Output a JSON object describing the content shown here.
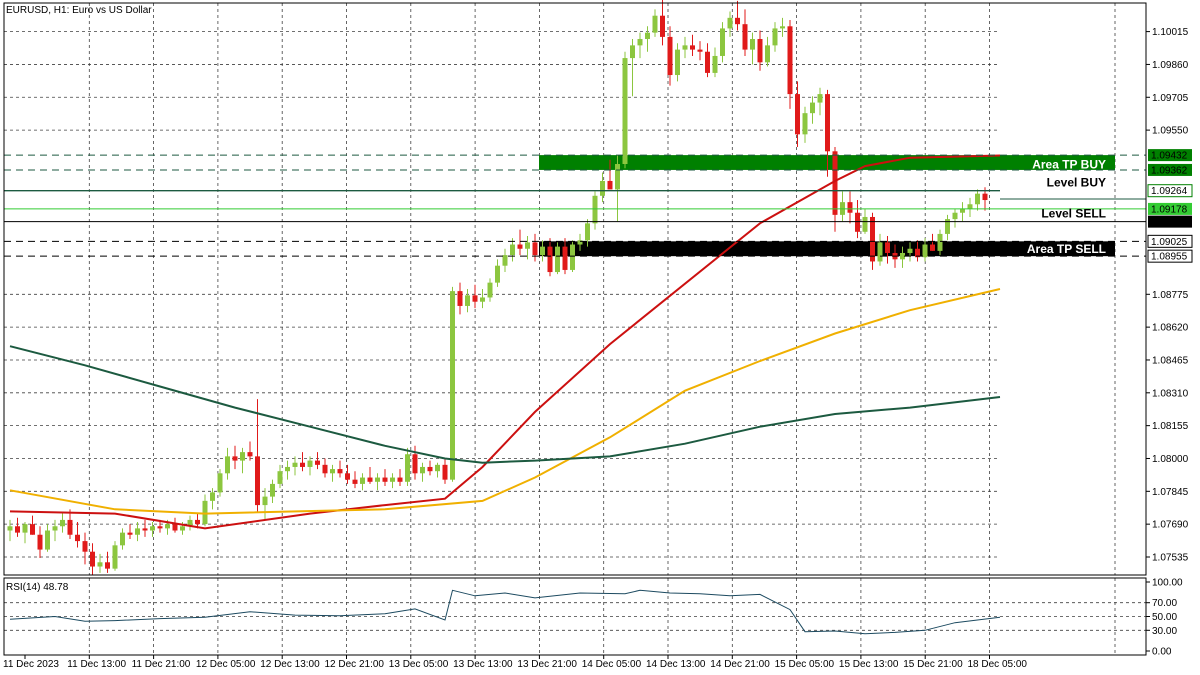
{
  "chart_data": {
    "type": "candlestick",
    "title": "EURUSD, H1:  Euro vs US Dollar",
    "price_axis": {
      "ylim": [
        1.0745,
        1.1015
      ],
      "ticks": [
        "1.10015",
        "1.09860",
        "1.09705",
        "1.09550",
        "1.08775",
        "1.08620",
        "1.08465",
        "1.08310",
        "1.08155",
        "1.08000",
        "1.07845",
        "1.07690",
        "1.07535"
      ],
      "tick_values": [
        1.10015,
        1.0986,
        1.09705,
        1.0955,
        1.08775,
        1.0862,
        1.08465,
        1.0831,
        1.08155,
        1.08,
        1.07845,
        1.0769,
        1.07535
      ]
    },
    "time_axis": {
      "labels": [
        "11 Dec 2023",
        "11 Dec 13:00",
        "11 Dec 21:00",
        "12 Dec 05:00",
        "12 Dec 13:00",
        "12 Dec 21:00",
        "13 Dec 05:00",
        "13 Dec 13:00",
        "13 Dec 21:00",
        "14 Dec 05:00",
        "14 Dec 13:00",
        "14 Dec 21:00",
        "15 Dec 05:00",
        "15 Dec 13:00",
        "15 Dec 21:00",
        "18 Dec 05:00"
      ]
    },
    "candles": [
      [
        1.0766,
        1.0771,
        1.0761,
        1.0768
      ],
      [
        1.0768,
        1.0772,
        1.0763,
        1.0765
      ],
      [
        1.0765,
        1.077,
        1.076,
        1.0769
      ],
      [
        1.0769,
        1.0773,
        1.0764,
        1.0764
      ],
      [
        1.0764,
        1.0768,
        1.0753,
        1.0757
      ],
      [
        1.0757,
        1.0769,
        1.0756,
        1.0766
      ],
      [
        1.0766,
        1.0771,
        1.0761,
        1.0768
      ],
      [
        1.0768,
        1.0775,
        1.0765,
        1.0771
      ],
      [
        1.0771,
        1.0776,
        1.0762,
        1.0764
      ],
      [
        1.0764,
        1.077,
        1.0758,
        1.0761
      ],
      [
        1.0761,
        1.0765,
        1.075,
        1.0756
      ],
      [
        1.0756,
        1.076,
        1.0745,
        1.0749
      ],
      [
        1.0749,
        1.0755,
        1.0746,
        1.0751
      ],
      [
        1.0751,
        1.0756,
        1.0746,
        1.0748
      ],
      [
        1.0748,
        1.0761,
        1.0747,
        1.0759
      ],
      [
        1.0759,
        1.0767,
        1.0757,
        1.0765
      ],
      [
        1.0765,
        1.0769,
        1.0762,
        1.0764
      ],
      [
        1.0764,
        1.077,
        1.0761,
        1.0767
      ],
      [
        1.0767,
        1.0771,
        1.0763,
        1.0766
      ],
      [
        1.0766,
        1.077,
        1.0763,
        1.0768
      ],
      [
        1.0768,
        1.0771,
        1.0765,
        1.0767
      ],
      [
        1.0767,
        1.0771,
        1.0764,
        1.0769
      ],
      [
        1.0769,
        1.0772,
        1.0765,
        1.0766
      ],
      [
        1.0766,
        1.077,
        1.0764,
        1.0768
      ],
      [
        1.0768,
        1.0773,
        1.0766,
        1.0771
      ],
      [
        1.0771,
        1.0774,
        1.0767,
        1.0769
      ],
      [
        1.0769,
        1.0783,
        1.0768,
        1.078
      ],
      [
        1.078,
        1.0786,
        1.0776,
        1.0784
      ],
      [
        1.0784,
        1.0795,
        1.0782,
        1.0793
      ],
      [
        1.0793,
        1.0805,
        1.079,
        1.0801
      ],
      [
        1.0801,
        1.0806,
        1.0795,
        1.0799
      ],
      [
        1.0799,
        1.0805,
        1.0793,
        1.0803
      ],
      [
        1.0803,
        1.0808,
        1.0799,
        1.0801
      ],
      [
        1.0801,
        1.0828,
        1.0775,
        1.0778
      ],
      [
        1.0778,
        1.0786,
        1.0771,
        1.0782
      ],
      [
        1.0782,
        1.079,
        1.0779,
        1.0788
      ],
      [
        1.0788,
        1.0797,
        1.0786,
        1.0794
      ],
      [
        1.0794,
        1.0799,
        1.079,
        1.0796
      ],
      [
        1.0796,
        1.0801,
        1.0792,
        1.0798
      ],
      [
        1.0798,
        1.0803,
        1.0794,
        1.0796
      ],
      [
        1.0796,
        1.0801,
        1.0792,
        1.0799
      ],
      [
        1.0799,
        1.0803,
        1.0795,
        1.0797
      ],
      [
        1.0797,
        1.08,
        1.0791,
        1.0793
      ],
      [
        1.0793,
        1.0797,
        1.0789,
        1.0795
      ],
      [
        1.0795,
        1.0799,
        1.0791,
        1.0793
      ],
      [
        1.0793,
        1.0797,
        1.0788,
        1.079
      ],
      [
        1.079,
        1.0794,
        1.0786,
        1.0788
      ],
      [
        1.0788,
        1.0793,
        1.0785,
        1.0791
      ],
      [
        1.0791,
        1.0796,
        1.0788,
        1.0789
      ],
      [
        1.0789,
        1.0793,
        1.0785,
        1.0791
      ],
      [
        1.0791,
        1.0795,
        1.0787,
        1.0789
      ],
      [
        1.0789,
        1.0793,
        1.0786,
        1.0791
      ],
      [
        1.0791,
        1.0795,
        1.0787,
        1.0789
      ],
      [
        1.0789,
        1.0805,
        1.0787,
        1.0802
      ],
      [
        1.0802,
        1.0806,
        1.079,
        1.0793
      ],
      [
        1.0793,
        1.0798,
        1.0789,
        1.0796
      ],
      [
        1.0796,
        1.0799,
        1.0792,
        1.0794
      ],
      [
        1.0794,
        1.0798,
        1.0791,
        1.0797
      ],
      [
        1.0797,
        1.08,
        1.0788,
        1.079
      ],
      [
        1.079,
        1.0881,
        1.0789,
        1.0879
      ],
      [
        1.0879,
        1.0883,
        1.0868,
        1.0872
      ],
      [
        1.0872,
        1.088,
        1.0869,
        1.0877
      ],
      [
        1.0877,
        1.0882,
        1.0871,
        1.0874
      ],
      [
        1.0874,
        1.088,
        1.0871,
        1.0876
      ],
      [
        1.0876,
        1.0885,
        1.0874,
        1.0883
      ],
      [
        1.0883,
        1.0894,
        1.0881,
        1.0891
      ],
      [
        1.0891,
        1.0899,
        1.0888,
        1.0896
      ],
      [
        1.0896,
        1.0904,
        1.0893,
        1.0901
      ],
      [
        1.0901,
        1.0908,
        1.0896,
        1.0899
      ],
      [
        1.0899,
        1.0905,
        1.0894,
        1.0902
      ],
      [
        1.0902,
        1.0906,
        1.0893,
        1.0896
      ],
      [
        1.0896,
        1.0903,
        1.0893,
        1.09
      ],
      [
        1.09,
        1.0904,
        1.0886,
        1.0888
      ],
      [
        1.0888,
        1.0902,
        1.0887,
        1.09
      ],
      [
        1.09,
        1.0904,
        1.0887,
        1.0889
      ],
      [
        1.0889,
        1.0903,
        1.0888,
        1.0901
      ],
      [
        1.0901,
        1.0906,
        1.0898,
        1.0903
      ],
      [
        1.0903,
        1.0913,
        1.09,
        1.0911
      ],
      [
        1.0911,
        1.0926,
        1.0908,
        1.0924
      ],
      [
        1.0924,
        1.0935,
        1.0921,
        1.0931
      ],
      [
        1.0931,
        1.0941,
        1.0928,
        1.0927
      ],
      [
        1.0927,
        1.0943,
        1.0912,
        1.0939
      ],
      [
        1.0939,
        1.0992,
        1.0937,
        1.0989
      ],
      [
        1.0989,
        1.0998,
        1.0971,
        1.0995
      ],
      [
        1.0995,
        1.1001,
        1.0989,
        1.0998
      ],
      [
        1.0998,
        1.1004,
        1.0992,
        1.1001
      ],
      [
        1.1001,
        1.1012,
        1.0999,
        1.1009
      ],
      [
        1.1009,
        1.1017,
        1.0995,
        1.0999
      ],
      [
        1.0999,
        1.1004,
        1.0976,
        1.0981
      ],
      [
        1.0981,
        1.0996,
        1.0978,
        1.0993
      ],
      [
        1.0993,
        1.0999,
        1.0989,
        1.0995
      ],
      [
        1.0995,
        1.1,
        1.099,
        1.0993
      ],
      [
        1.0993,
        1.0997,
        1.0988,
        1.0992
      ],
      [
        1.0992,
        1.0996,
        1.098,
        1.0982
      ],
      [
        1.0982,
        1.0994,
        1.098,
        1.099
      ],
      [
        1.099,
        1.1006,
        1.0987,
        1.1003
      ],
      [
        1.1003,
        1.1011,
        1.0999,
        1.1008
      ],
      [
        1.1008,
        1.1016,
        1.1002,
        1.1005
      ],
      [
        1.1005,
        1.1012,
        1.099,
        1.0993
      ],
      [
        1.0993,
        1.1001,
        1.0986,
        1.0998
      ],
      [
        1.0998,
        1.1002,
        1.0983,
        1.0987
      ],
      [
        1.0987,
        1.0999,
        1.0985,
        1.0995
      ],
      [
        1.0995,
        1.1006,
        1.0992,
        1.1003
      ],
      [
        1.1003,
        1.1008,
        1.0999,
        1.1004
      ],
      [
        1.1004,
        1.1007,
        1.0965,
        1.0972
      ],
      [
        1.0972,
        1.0978,
        1.0947,
        1.0953
      ],
      [
        1.0953,
        1.0966,
        1.0949,
        1.0963
      ],
      [
        1.0963,
        1.0971,
        1.0958,
        1.0968
      ],
      [
        1.0968,
        1.0975,
        1.0962,
        1.0972
      ],
      [
        1.0972,
        1.0974,
        1.0933,
        1.0945
      ],
      [
        1.0945,
        1.0947,
        1.0907,
        1.0915
      ],
      [
        1.0915,
        1.0926,
        1.0912,
        1.0921
      ],
      [
        1.0921,
        1.0926,
        1.0911,
        1.0916
      ],
      [
        1.0916,
        1.0922,
        1.0904,
        1.0907
      ],
      [
        1.0907,
        1.0918,
        1.0906,
        1.0914
      ],
      [
        1.0914,
        1.0916,
        1.0889,
        1.0893
      ],
      [
        1.0893,
        1.0906,
        1.0891,
        1.0902
      ],
      [
        1.0902,
        1.0905,
        1.0892,
        1.0897
      ],
      [
        1.0897,
        1.0901,
        1.089,
        1.0894
      ],
      [
        1.0894,
        1.09,
        1.089,
        1.0897
      ],
      [
        1.0897,
        1.0902,
        1.0893,
        1.0899
      ],
      [
        1.0899,
        1.0903,
        1.0893,
        1.0895
      ],
      [
        1.0895,
        1.0904,
        1.0893,
        1.0901
      ],
      [
        1.0901,
        1.0906,
        1.0898,
        1.0898
      ],
      [
        1.0898,
        1.0908,
        1.0896,
        1.0906
      ],
      [
        1.0906,
        1.0915,
        1.0903,
        1.0913
      ],
      [
        1.0913,
        1.0918,
        1.0909,
        1.0916
      ],
      [
        1.0916,
        1.0921,
        1.0912,
        1.0918
      ],
      [
        1.0918,
        1.0923,
        1.0914,
        1.092
      ],
      [
        1.092,
        1.0927,
        1.0917,
        1.0925
      ],
      [
        1.0925,
        1.0928,
        1.0917,
        1.0922
      ]
    ],
    "moving_averages": [
      {
        "color": "#cc1010",
        "x": [
          0,
          14,
          26,
          40,
          50,
          58,
          63,
          70,
          80,
          100,
          110,
          114,
          120,
          132
        ],
        "y": [
          1.0775,
          1.0774,
          1.0767,
          1.0774,
          1.0778,
          1.0781,
          1.0796,
          1.0822,
          1.0854,
          1.0911,
          1.0931,
          1.0938,
          1.0942,
          1.0943
        ]
      },
      {
        "color": "#f0b000",
        "x": [
          0,
          14,
          26,
          50,
          63,
          70,
          80,
          90,
          100,
          110,
          120,
          132
        ],
        "y": [
          1.0785,
          1.0776,
          1.0774,
          1.0776,
          1.078,
          1.0791,
          1.081,
          1.0832,
          1.0846,
          1.0859,
          1.087,
          1.088
        ]
      },
      {
        "color": "#1c5a40",
        "x": [
          0,
          10,
          20,
          30,
          40,
          50,
          58,
          63,
          70,
          80,
          90,
          100,
          110,
          120,
          132
        ],
        "y": [
          1.0853,
          1.0844,
          1.0834,
          1.0824,
          1.0815,
          1.0806,
          1.08,
          1.0798,
          1.0799,
          1.0801,
          1.0807,
          1.0815,
          1.0821,
          1.0824,
          1.0829
        ]
      }
    ],
    "price_labels": [
      {
        "text": "1.09432",
        "value": 1.09432,
        "bg": "#008000",
        "fg": "#ffffff"
      },
      {
        "text": "1.09362",
        "value": 1.09362,
        "bg": "#008000",
        "fg": "#ffffff"
      },
      {
        "text": "1.09264",
        "value": 1.09264,
        "bg": "#ffffff",
        "fg": "#000000",
        "border": "#008000"
      },
      {
        "text": "1.09178",
        "value": 1.09178,
        "bg": "#33cc33",
        "fg": "#ffffff"
      },
      {
        "text": "1.09118",
        "value": 1.09118,
        "bg": "#000000",
        "fg": "#ffffff"
      },
      {
        "text": "1.09025",
        "value": 1.09025,
        "bg": "#ffffff",
        "fg": "#000000",
        "border": "#000000"
      },
      {
        "text": "1.08955",
        "value": 1.08955,
        "bg": "#ffffff",
        "fg": "#000000",
        "border": "#000000"
      }
    ],
    "levels": [
      {
        "name": "Area TP BUY",
        "value": 1.0939,
        "zone": [
          1.09362,
          1.09432
        ],
        "color": "#008000"
      },
      {
        "name": "Level BUY",
        "value": 1.09264,
        "color": "#1c5a40"
      },
      {
        "name": "Level SELL",
        "value": 1.09118,
        "color": "#000000"
      },
      {
        "name": "Area TP SELL",
        "value": 1.0899,
        "zone": [
          1.08955,
          1.09025
        ],
        "color": "#000000"
      }
    ],
    "rsi": {
      "label": "RSI(14) 48.78",
      "ylim": [
        0,
        100
      ],
      "ticks": [
        "100.00",
        "70.00",
        "50.00",
        "30.00",
        "0.00"
      ],
      "tick_values": [
        100,
        70,
        50,
        30,
        0
      ],
      "x": [
        0,
        6,
        10,
        14,
        20,
        26,
        32,
        38,
        44,
        50,
        54,
        58,
        59,
        62,
        66,
        70,
        76,
        82,
        84,
        88,
        92,
        96,
        100,
        104,
        106,
        110,
        114,
        118,
        122,
        126,
        129,
        132
      ],
      "values": [
        46,
        50,
        43,
        44,
        47,
        49,
        57,
        52,
        51,
        54,
        61,
        45,
        88,
        80,
        84,
        77,
        84,
        83,
        88,
        84,
        83,
        80,
        82,
        60,
        28,
        29,
        25,
        27,
        30,
        41,
        45,
        49
      ]
    },
    "colors": {
      "bull": "#8cc63f",
      "bear": "#e01a1a"
    }
  }
}
